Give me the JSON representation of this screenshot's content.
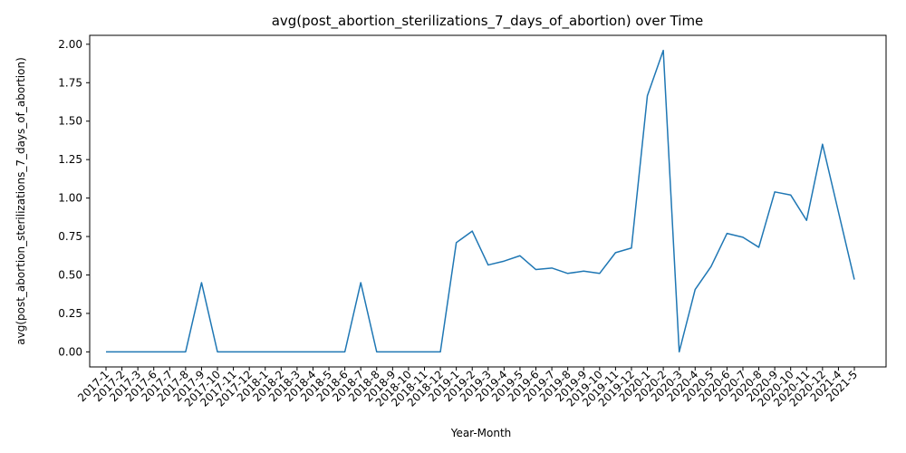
{
  "chart_data": {
    "type": "line",
    "title": "avg(post_abortion_sterilizations_7_days_of_abortion) over Time",
    "xlabel": "Year-Month",
    "ylabel": "avg(post_abortion_sterilizations_7_days_of_abortion)",
    "ylim": [
      -0.098,
      2.058
    ],
    "yticks": [
      "0.00",
      "0.25",
      "0.50",
      "0.75",
      "1.00",
      "1.25",
      "1.50",
      "1.75",
      "2.00"
    ],
    "grid": false,
    "line_color": "#1f77b4",
    "categories": [
      "2017-1",
      "2017-2",
      "2017-3",
      "2017-6",
      "2017-7",
      "2017-8",
      "2017-9",
      "2017-10",
      "2017-11",
      "2017-12",
      "2018-1",
      "2018-2",
      "2018-3",
      "2018-4",
      "2018-5",
      "2018-6",
      "2018-7",
      "2018-8",
      "2018-9",
      "2018-10",
      "2018-11",
      "2018-12",
      "2019-1",
      "2019-2",
      "2019-3",
      "2019-4",
      "2019-5",
      "2019-6",
      "2019-7",
      "2019-8",
      "2019-9",
      "2019-10",
      "2019-11",
      "2019-12",
      "2020-1",
      "2020-2",
      "2020-3",
      "2020-4",
      "2020-5",
      "2020-6",
      "2020-7",
      "2020-8",
      "2020-9",
      "2020-10",
      "2020-11",
      "2020-12",
      "2021-4",
      "2021-5"
    ],
    "values": [
      0,
      0,
      0,
      0,
      0,
      0,
      0.45,
      0,
      0,
      0,
      0,
      0,
      0,
      0,
      0,
      0,
      0.45,
      0,
      0,
      0,
      0,
      0,
      0.71,
      0.785,
      0.565,
      0.59,
      0.625,
      0.535,
      0.545,
      0.51,
      0.525,
      0.51,
      0.645,
      0.675,
      1.665,
      1.96,
      0,
      0.405,
      0.555,
      0.77,
      0.745,
      0.68,
      1.04,
      1.02,
      0.855,
      1.35,
      0.91,
      0.47
    ]
  }
}
